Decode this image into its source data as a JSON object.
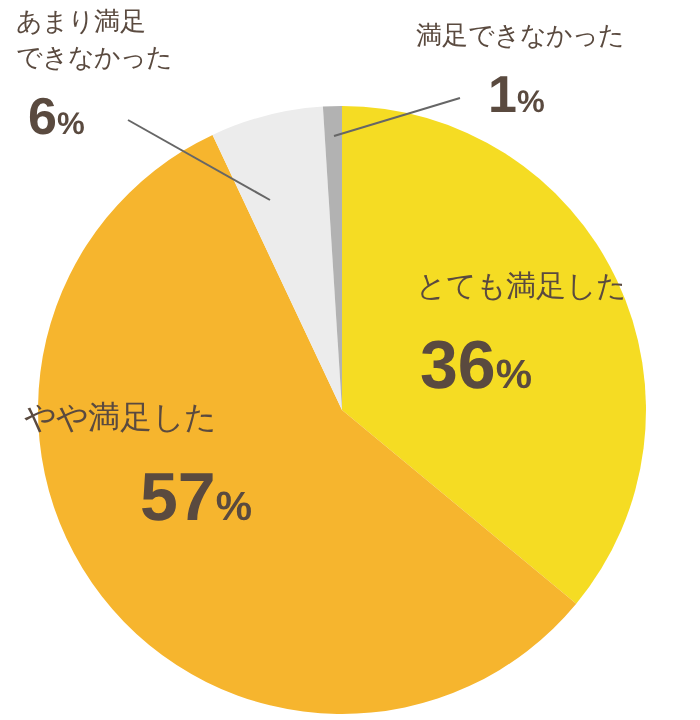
{
  "chart_data": {
    "type": "pie",
    "categories": [
      "とても満足した",
      "やや満足した",
      "あまり満足できなかった",
      "満足できなかった"
    ],
    "values": [
      36,
      57,
      6,
      1
    ],
    "colors": [
      "#f5dc23",
      "#f6b52e",
      "#ececec",
      "#b2b2b2"
    ],
    "value_labels": [
      "36%",
      "57%",
      "6%",
      "1%"
    ]
  }
}
